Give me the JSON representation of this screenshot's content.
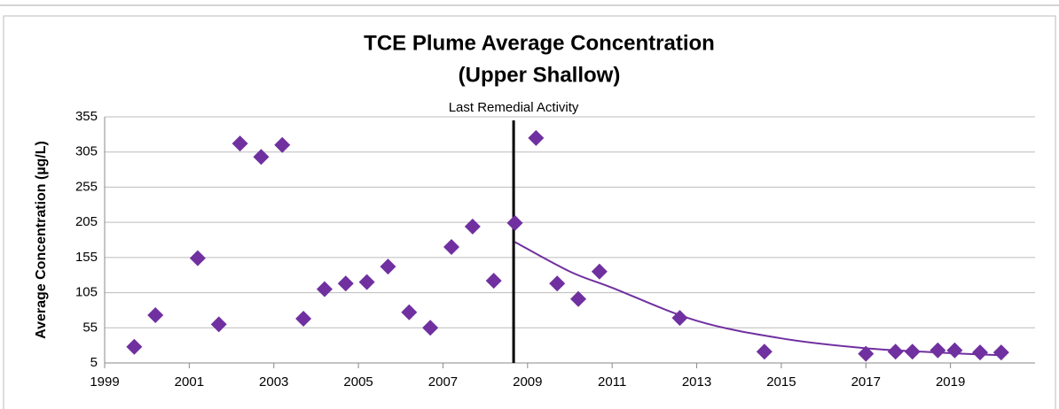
{
  "chart_data": {
    "type": "scatter",
    "title": [
      "TCE Plume Average Concentration",
      "(Upper Shallow)"
    ],
    "y_label": "Average Concentration (µg/L)",
    "xlim": [
      1999,
      2021
    ],
    "xticks": [
      1999,
      2001,
      2003,
      2005,
      2007,
      2009,
      2011,
      2013,
      2015,
      2017,
      2019
    ],
    "ylim": [
      5,
      355
    ],
    "yticks": [
      5,
      55,
      105,
      155,
      205,
      255,
      305,
      355
    ],
    "grid": true,
    "color": "#7030a0",
    "x": [
      1999.7,
      2000.2,
      2001.2,
      2001.7,
      2002.2,
      2002.7,
      2003.2,
      2003.7,
      2004.2,
      2004.7,
      2005.2,
      2005.7,
      2006.2,
      2006.7,
      2007.2,
      2007.7,
      2008.2,
      2008.7,
      2009.2,
      2009.7,
      2010.2,
      2010.7,
      2012.6,
      2014.6,
      2017.0,
      2017.7,
      2018.1,
      2018.7,
      2019.1,
      2019.7,
      2020.2
    ],
    "values": [
      28,
      73,
      154,
      60,
      317,
      298,
      315,
      68,
      110,
      118,
      120,
      142,
      77,
      55,
      170,
      199,
      122,
      204,
      325,
      118,
      96,
      135,
      69,
      21,
      18,
      21,
      21,
      23,
      23,
      20,
      20
    ],
    "trendline": {
      "x": [
        2008.7,
        2010,
        2011,
        2013,
        2015,
        2017,
        2019,
        2020.2
      ],
      "values": [
        177,
        135,
        112,
        65,
        40,
        26,
        19,
        16
      ],
      "color": "#7030a0"
    },
    "vline": {
      "x": 2008.67,
      "label": "Last Remedial Activity",
      "color": "#000000"
    }
  }
}
